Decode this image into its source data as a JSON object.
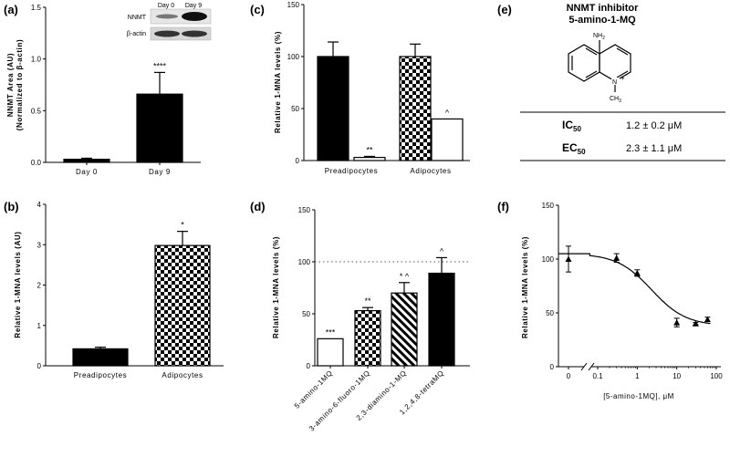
{
  "panels": {
    "a": "(a)",
    "b": "(b)",
    "c": "(c)",
    "d": "(d)",
    "e": "(e)",
    "f": "(f)"
  },
  "blot": {
    "lanes": [
      "Day 0",
      "Day 9"
    ],
    "rows": [
      "NNMT",
      "β-actin"
    ]
  },
  "compound": {
    "title_line1": "NNMT inhibitor",
    "title_line2": "5-amino-1-MQ",
    "nh2": "NH",
    "nh2_sub": "2",
    "n_plus": "N",
    "plus": "+",
    "ch3": "CH",
    "ch3_sub": "3",
    "rows": [
      {
        "key": "IC",
        "sub": "50",
        "value": "1.2 ± 0.2 μM"
      },
      {
        "key": "EC",
        "sub": "50",
        "value": "2.3 ± 1.1 μM"
      }
    ]
  },
  "chart_data": [
    {
      "id": "a",
      "type": "bar",
      "ylabel_line1": "NNMT Area (AU)",
      "ylabel_line2": "(Normalized to β-actin)",
      "ylim": [
        0,
        1.5
      ],
      "yticks": [
        "0.0",
        "0.5",
        "1.0",
        "1.5"
      ],
      "categories": [
        "Day 0",
        "Day 9"
      ],
      "values": [
        0.03,
        0.66
      ],
      "errors": [
        0.01,
        0.21
      ],
      "significance": [
        "",
        "****"
      ]
    },
    {
      "id": "b",
      "type": "bar",
      "ylabel": "Relative 1-MNA levels (AU)",
      "ylim": [
        0,
        4
      ],
      "yticks": [
        "0",
        "1",
        "2",
        "3",
        "4"
      ],
      "categories": [
        "Preadipocytes",
        "Adipocytes"
      ],
      "values": [
        0.42,
        2.98
      ],
      "errors": [
        0.04,
        0.35
      ],
      "significance": [
        "",
        "*"
      ]
    },
    {
      "id": "c",
      "type": "bar",
      "ylabel": "Relative 1-MNA levels (%)",
      "ylim": [
        0,
        150
      ],
      "yticks": [
        "0",
        "50",
        "100",
        "150"
      ],
      "groups": [
        "Preadipocytes",
        "Adipocytes"
      ],
      "values": [
        100,
        3,
        100,
        40
      ],
      "errors": [
        14,
        1,
        12,
        0
      ],
      "significance": [
        "",
        "**",
        "",
        "^"
      ]
    },
    {
      "id": "d",
      "type": "bar",
      "ylabel": "Relative 1-MNA levels (%)",
      "ylim": [
        0,
        150
      ],
      "yticks": [
        "0",
        "50",
        "100",
        "150"
      ],
      "reference_line": 100,
      "categories": [
        "5-amino-1MQ",
        "3-amino-6-fluoro-1MQ",
        "2,3-diamino-1-MQ",
        "1,2,4,8-tetraMQ"
      ],
      "values": [
        26,
        53,
        70,
        89
      ],
      "errors": [
        0,
        3,
        10,
        15
      ],
      "significance": [
        "***",
        "**",
        "* ^",
        "^"
      ]
    },
    {
      "id": "f",
      "type": "scatter",
      "ylabel": "Relative 1-MNA levels (%)",
      "xlabel": "[5-amino-1MQ], μM",
      "ylim": [
        0,
        150
      ],
      "yticks": [
        "0",
        "50",
        "100",
        "150"
      ],
      "xticks": [
        "0",
        "0.1",
        "1",
        "10",
        "100"
      ],
      "x_scale": "log",
      "points": [
        {
          "x": 0,
          "y": 100,
          "err": 12
        },
        {
          "x": 0.3,
          "y": 101,
          "err": 4
        },
        {
          "x": 1,
          "y": 87,
          "err": 3
        },
        {
          "x": 10,
          "y": 41,
          "err": 4
        },
        {
          "x": 30,
          "y": 40,
          "err": 1
        },
        {
          "x": 60,
          "y": 44,
          "err": 2
        }
      ],
      "fit": {
        "top": 105,
        "bottom": 38,
        "ec50": 2.3
      }
    }
  ]
}
